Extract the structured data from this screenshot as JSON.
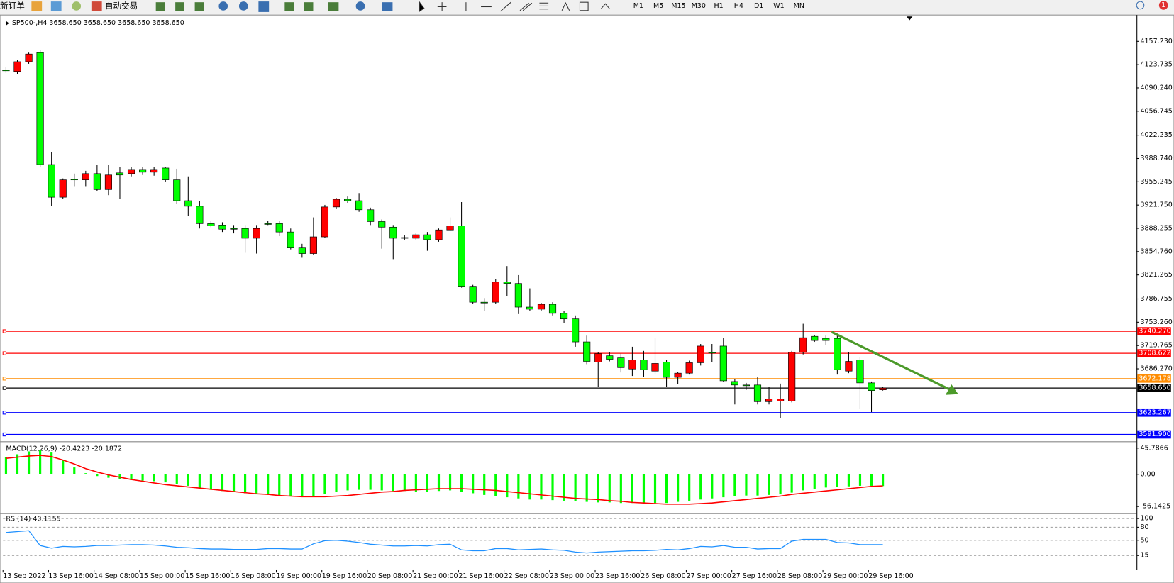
{
  "toolbar": {
    "new_order": "新订单",
    "auto_trading": "自动交易",
    "timeframes": [
      "M1",
      "M5",
      "M15",
      "M30",
      "H1",
      "H4",
      "D1",
      "W1",
      "MN"
    ],
    "alerts": "1"
  },
  "chart_data": [
    {
      "type": "candlestick",
      "title": "SP500-,H4  3658.650 3658.650 3658.650 3658.650",
      "categories": [
        "13 Sep 2022",
        null,
        null,
        null,
        "13 Sep 16:00",
        null,
        null,
        null,
        "14 Sep 08:00",
        null,
        null,
        null,
        "15 Sep 00:00",
        null,
        null,
        null,
        "15 Sep 16:00",
        null,
        null,
        null,
        "16 Sep 08:00",
        null,
        null,
        null,
        "19 Sep 00:00",
        null,
        null,
        null,
        "19 Sep 16:00",
        null,
        null,
        null,
        "20 Sep 08:00",
        null,
        null,
        null,
        "21 Sep 00:00",
        null,
        null,
        null,
        "21 Sep 16:00",
        null,
        null,
        null,
        "22 Sep 08:00",
        null,
        null,
        null,
        "23 Sep 00:00",
        null,
        null,
        null,
        "23 Sep 16:00",
        null,
        null,
        null,
        "26 Sep 08:00",
        null,
        null,
        null,
        "27 Sep 00:00",
        null,
        null,
        null,
        "27 Sep 16:00",
        null,
        null,
        null,
        "28 Sep 08:00",
        null,
        null,
        null,
        "29 Sep 00:00",
        null,
        null,
        null,
        "29 Sep 16:00",
        null
      ],
      "open": [
        4116,
        4114,
        4128,
        4141,
        3980,
        3933,
        3959,
        3958,
        3967,
        3944,
        3968,
        3967,
        3973,
        3969,
        3975,
        3958,
        3928,
        3920,
        3895,
        3893,
        3888,
        3888,
        3874,
        3895,
        3895,
        3883,
        3861,
        3852,
        3876,
        3919,
        3930,
        3928,
        3915,
        3898,
        3890,
        3875,
        3874,
        3879,
        3872,
        3886,
        3892,
        3805,
        3782,
        3782,
        3811,
        3809,
        3775,
        3772,
        3779,
        3766,
        3758,
        3725,
        3696,
        3705,
        3702,
        3686,
        3699,
        3683,
        3696,
        3674,
        3680,
        3695,
        3710,
        3719,
        3668,
        3663,
        3663,
        3639,
        3640,
        3640,
        3710,
        3733,
        3730,
        3730,
        3683,
        3699,
        3666,
        3656
      ],
      "high": [
        4120,
        4130,
        4141,
        4145,
        3998,
        3960,
        3967,
        3971,
        3980,
        3980,
        3977,
        3977,
        3977,
        3977,
        3977,
        3974,
        3963,
        3928,
        3899,
        3897,
        3893,
        3893,
        3893,
        3899,
        3899,
        3888,
        3866,
        3904,
        3922,
        3932,
        3934,
        3939,
        3918,
        3901,
        3893,
        3878,
        3881,
        3883,
        3888,
        3904,
        3926,
        3807,
        3788,
        3815,
        3834,
        3821,
        3802,
        3781,
        3782,
        3769,
        3763,
        3734,
        3710,
        3710,
        3708,
        3718,
        3712,
        3730,
        3699,
        3682,
        3698,
        3722,
        3722,
        3731,
        3672,
        3666,
        3675,
        3660,
        3665,
        3712,
        3751,
        3735,
        3734,
        3737,
        3710,
        3703,
        3668,
        3660
      ],
      "low": [
        4112,
        4110,
        4125,
        3977,
        3920,
        3931,
        3949,
        3949,
        3942,
        3936,
        3931,
        3963,
        3965,
        3964,
        3955,
        3923,
        3906,
        3888,
        3890,
        3883,
        3881,
        3853,
        3852,
        3893,
        3877,
        3858,
        3846,
        3850,
        3874,
        3916,
        3925,
        3912,
        3893,
        3859,
        3844,
        3871,
        3872,
        3856,
        3869,
        3885,
        3803,
        3780,
        3769,
        3780,
        3791,
        3765,
        3769,
        3769,
        3763,
        3752,
        3718,
        3693,
        3660,
        3697,
        3681,
        3676,
        3675,
        3678,
        3660,
        3664,
        3678,
        3691,
        3696,
        3667,
        3635,
        3656,
        3635,
        3635,
        3615,
        3638,
        3707,
        3725,
        3721,
        3678,
        3680,
        3629,
        3624,
        3655
      ],
      "close": [
        4116,
        4128,
        4139,
        3980,
        3933,
        3958,
        3959,
        3967,
        3944,
        3965,
        3965,
        3973,
        3969,
        3973,
        3958,
        3928,
        3920,
        3895,
        3892,
        3887,
        3888,
        3874,
        3888,
        3895,
        3883,
        3861,
        3852,
        3876,
        3919,
        3930,
        3928,
        3915,
        3898,
        3890,
        3874,
        3875,
        3879,
        3872,
        3886,
        3892,
        3805,
        3782,
        3782,
        3811,
        3809,
        3775,
        3772,
        3779,
        3766,
        3758,
        3725,
        3697,
        3708,
        3700,
        3688,
        3699,
        3685,
        3694,
        3674,
        3680,
        3695,
        3719,
        3710,
        3669,
        3663,
        3663,
        3639,
        3643,
        3643,
        3710,
        3731,
        3727,
        3727,
        3685,
        3697,
        3666,
        3655,
        3658.65
      ],
      "up_color": "#ff0000",
      "down_color": "#00ff00",
      "ylim": [
        3583,
        4193
      ],
      "yticks": [
        {
          "value": 4157.23,
          "label": "4157.230"
        },
        4123.735,
        {
          "value": 4090.24,
          "label": "4090.240"
        },
        4056.745,
        4022.235,
        {
          "value": 3988.74,
          "label": "3988.740"
        },
        3955.245,
        {
          "value": 3921.75,
          "label": "3921.750"
        },
        3888.255,
        {
          "value": 3854.76,
          "label": "3854.760"
        },
        3821.265,
        3786.755,
        {
          "value": 3753.26,
          "label": "3753.260"
        },
        3719.765,
        {
          "value": 3686.27,
          "label": "3686.270"
        }
      ],
      "hlines": [
        {
          "value": 3740.27,
          "label": "3740.270",
          "color": "#ff0000"
        },
        {
          "value": 3708.622,
          "label": "3708.622",
          "color": "#ff0000"
        },
        {
          "value": 3672.178,
          "label": "3672.178",
          "color": "#ff8c00"
        },
        {
          "value": 3658.65,
          "label": "3658.650",
          "color": "#000000"
        },
        {
          "value": 3623.267,
          "label": "3623.267",
          "color": "#0000ff"
        },
        {
          "value": 3591.9,
          "label": "3591.900",
          "color": "#0000ff"
        }
      ]
    },
    {
      "type": "macd",
      "title": "MACD(12,26,9) -20.4223 -20.1872",
      "series": [
        {
          "color": "#00ff00",
          "values": [
            30,
            35,
            40,
            43,
            38,
            25,
            12,
            2,
            -3,
            -6,
            -8,
            -10,
            -11,
            -12,
            -14,
            -17,
            -20,
            -24,
            -27,
            -29,
            -31,
            -33,
            -35,
            -36,
            -37,
            -38,
            -39,
            -38,
            -34,
            -30,
            -28,
            -27,
            -27,
            -28,
            -29,
            -29,
            -30,
            -30,
            -29,
            -28,
            -30,
            -33,
            -36,
            -38,
            -40,
            -42,
            -44,
            -44,
            -45,
            -46,
            -47,
            -48,
            -49,
            -49,
            -50,
            -50,
            -51,
            -50,
            -50,
            -48,
            -46,
            -44,
            -42,
            -40,
            -38,
            -37,
            -37,
            -36,
            -35,
            -32,
            -28,
            -25,
            -23,
            -22,
            -21,
            -20,
            -20,
            -20.4223
          ]
        },
        {
          "color": "#ff0000",
          "values": [
            28,
            30,
            32,
            33,
            31,
            25,
            18,
            10,
            4,
            -1,
            -5,
            -9,
            -12,
            -15,
            -18,
            -20,
            -22,
            -24,
            -26,
            -28,
            -30,
            -32,
            -34,
            -35,
            -37,
            -38,
            -39,
            -39,
            -39,
            -38,
            -37,
            -35,
            -33,
            -31,
            -30,
            -28,
            -27,
            -26,
            -25,
            -25,
            -25,
            -26,
            -27,
            -28,
            -30,
            -32,
            -34,
            -36,
            -38,
            -40,
            -42,
            -43,
            -44,
            -46,
            -47,
            -49,
            -50,
            -51,
            -52,
            -52,
            -52,
            -51,
            -50,
            -48,
            -46,
            -44,
            -42,
            -40,
            -38,
            -35,
            -33,
            -31,
            -29,
            -27,
            -25,
            -23,
            -21,
            -20.1872
          ]
        }
      ],
      "ylim": [
        -66.7,
        54.9
      ],
      "yticks": [
        45.7866,
        {
          "value": 0,
          "label": "0.00"
        },
        -56.1425
      ]
    },
    {
      "type": "line",
      "title": "RSI(14) 40.1155",
      "series": [
        {
          "color": "#1e90ff",
          "values": [
            68,
            70,
            72,
            38,
            32,
            36,
            35,
            36,
            38,
            38,
            39,
            40,
            40,
            39,
            37,
            34,
            33,
            31,
            30,
            30,
            29,
            29,
            29,
            31,
            31,
            30,
            30,
            42,
            49,
            50,
            48,
            45,
            41,
            39,
            37,
            37,
            38,
            37,
            40,
            41,
            28,
            26,
            26,
            31,
            31,
            28,
            29,
            30,
            28,
            27,
            23,
            21,
            23,
            24,
            25,
            26,
            26,
            27,
            29,
            28,
            31,
            36,
            35,
            38,
            34,
            34,
            30,
            31,
            31,
            48,
            52,
            52,
            52,
            45,
            44,
            40,
            40,
            40.1155
          ]
        }
      ],
      "ylim": [
        -12,
        108.6
      ],
      "yticks": [
        100,
        80,
        50,
        15
      ]
    }
  ]
}
